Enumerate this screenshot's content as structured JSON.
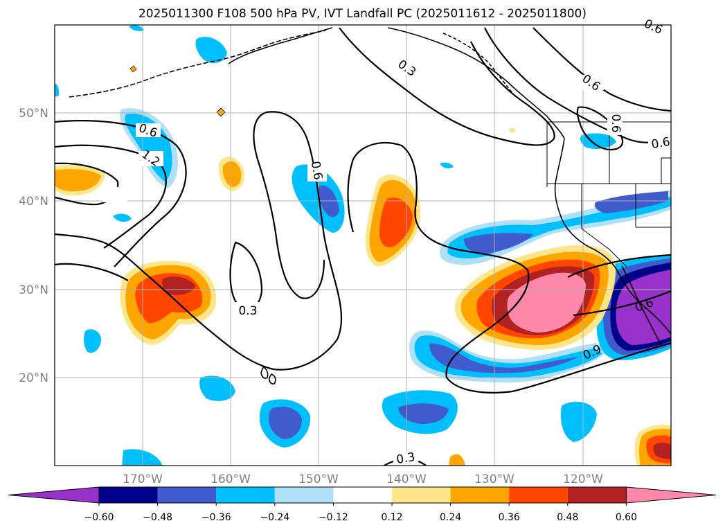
{
  "title": "2025011300 F108 500 hPa PV, IVT Landfall PC (2025011612 - 2025011800)",
  "map": {
    "lon_range": [
      180,
      110
    ],
    "lat_range": [
      10,
      60
    ],
    "lat_ticks": [
      {
        "lat": 20,
        "label": "20°N"
      },
      {
        "lat": 30,
        "label": "30°N"
      },
      {
        "lat": 40,
        "label": "40°N"
      },
      {
        "lat": 50,
        "label": "50°N"
      }
    ],
    "lon_ticks": [
      {
        "lon": 170,
        "label": "170°W"
      },
      {
        "lon": 160,
        "label": "160°W"
      },
      {
        "lon": 150,
        "label": "150°W"
      },
      {
        "lon": 140,
        "label": "140°W"
      },
      {
        "lon": 130,
        "label": "130°W"
      },
      {
        "lon": 120,
        "label": "120°W"
      }
    ],
    "contour_labels": [
      "0.3",
      "0.3",
      "0.3",
      "0.6",
      "0.6",
      "0.6",
      "0.6",
      "0.6",
      "0.6",
      "0.6",
      "0.9",
      "1.2"
    ]
  },
  "colorbar": {
    "ticks": [
      "−0.60",
      "−0.48",
      "−0.36",
      "−0.24",
      "−0.12",
      "0.12",
      "0.24",
      "0.36",
      "0.48",
      "0.60"
    ],
    "colors": [
      "#9932cc",
      "#00008b",
      "#3f5bcc",
      "#00bfff",
      "#b0e0f8",
      "#ffffff",
      "#fde68a",
      "#ffa500",
      "#ff4500",
      "#b22222",
      "#ff88aa"
    ]
  }
}
